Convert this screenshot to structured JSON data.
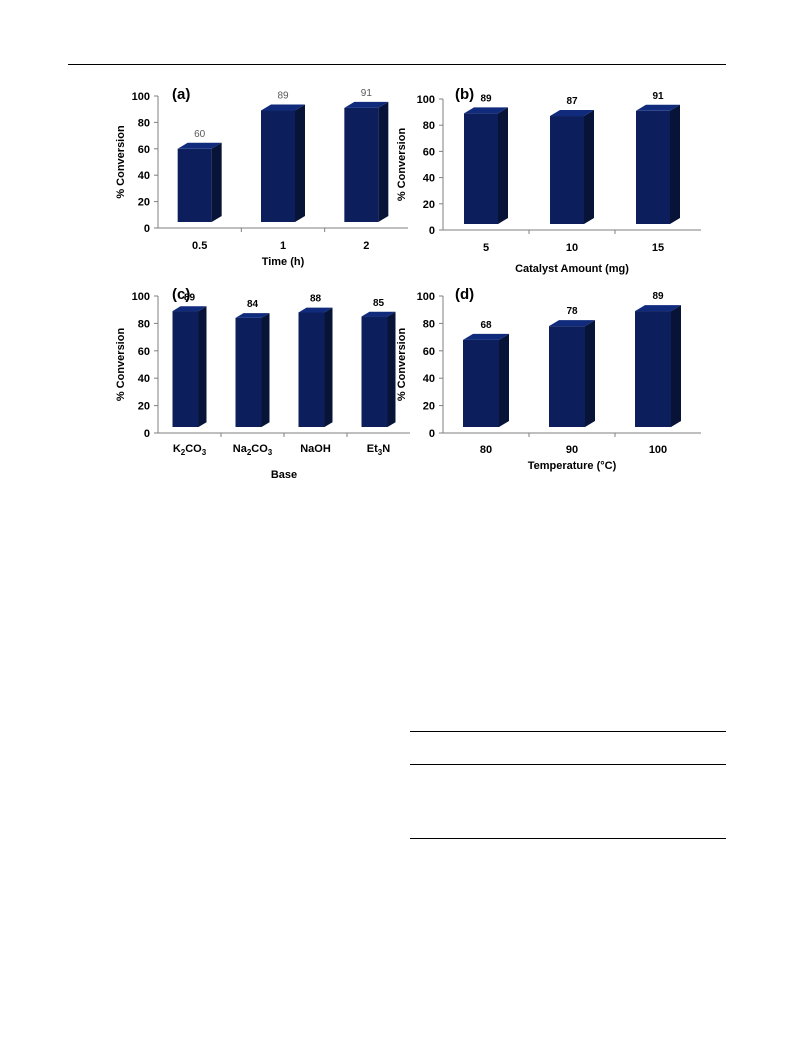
{
  "chart_data": [
    {
      "type": "bar",
      "panel": "(a)",
      "categories": [
        "0.5",
        "1",
        "2"
      ],
      "values": [
        60,
        89,
        91
      ],
      "xlabel": "Time (h)",
      "ylabel": "% Conversion",
      "ylim": [
        0,
        100
      ],
      "yticks": [
        "0",
        "20",
        "40",
        "60",
        "80",
        "100"
      ],
      "grid": false,
      "bar_color": "#0c1f5c",
      "label_style": "grey"
    },
    {
      "type": "bar",
      "panel": "(b)",
      "categories": [
        "5",
        "10",
        "15"
      ],
      "values": [
        89,
        87,
        91
      ],
      "xlabel": "Catalyst Amount (mg)",
      "ylabel": "% Conversion",
      "ylim": [
        0,
        100
      ],
      "yticks": [
        "0",
        "20",
        "40",
        "60",
        "80",
        "100"
      ],
      "grid": false,
      "bar_color": "#0c1f5c",
      "label_style": "bold"
    },
    {
      "type": "bar",
      "panel": "(c)",
      "categories": [
        "K2CO3",
        "Na2CO3",
        "NaOH",
        "Et3N"
      ],
      "category_rich": [
        [
          [
            "K",
            0
          ],
          [
            "2",
            1
          ],
          [
            "CO",
            0
          ],
          [
            "3",
            1
          ]
        ],
        [
          [
            "Na",
            0
          ],
          [
            "2",
            1
          ],
          [
            "CO",
            0
          ],
          [
            "3",
            1
          ]
        ],
        [
          [
            "NaOH",
            0
          ]
        ],
        [
          [
            "Et",
            0
          ],
          [
            "3",
            1
          ],
          [
            "N",
            0
          ]
        ]
      ],
      "values": [
        89,
        84,
        88,
        85
      ],
      "xlabel": "Base",
      "ylabel": "% Conversion",
      "ylim": [
        0,
        100
      ],
      "yticks": [
        "0",
        "20",
        "40",
        "60",
        "80",
        "100"
      ],
      "grid": false,
      "bar_color": "#0c1f5c",
      "label_style": "bold"
    },
    {
      "type": "bar",
      "panel": "(d)",
      "categories": [
        "80",
        "90",
        "100"
      ],
      "values": [
        68,
        78,
        89
      ],
      "xlabel": "Temperature (°C)",
      "ylabel": "% Conversion",
      "ylim": [
        0,
        100
      ],
      "yticks": [
        "0",
        "20",
        "40",
        "60",
        "80",
        "100"
      ],
      "grid": false,
      "bar_color": "#0c1f5c",
      "label_style": "bold"
    }
  ]
}
